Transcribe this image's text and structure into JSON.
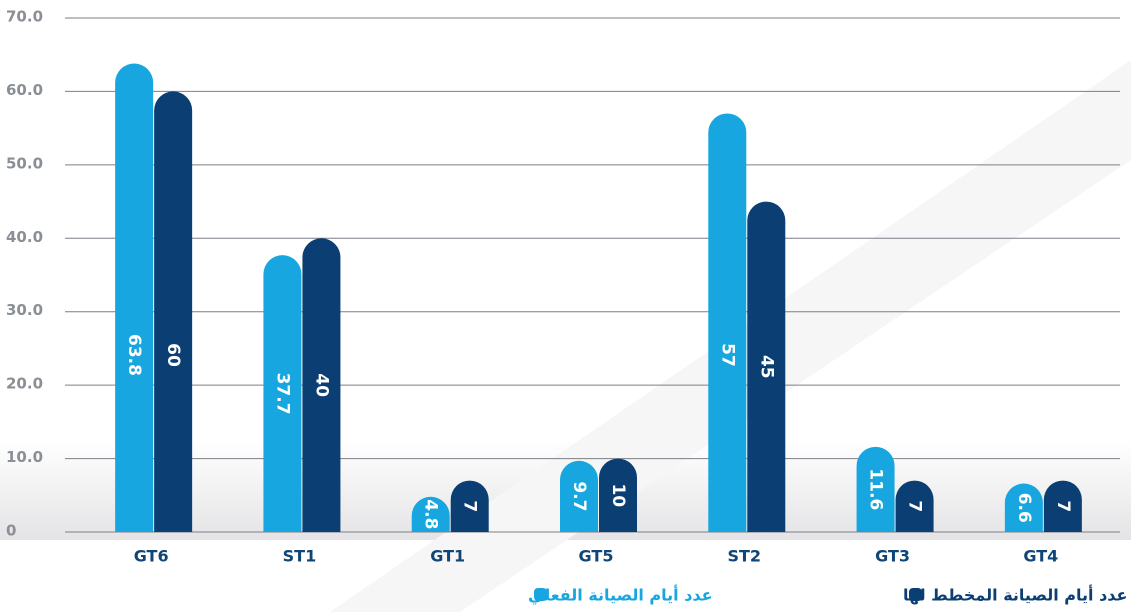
{
  "chart_data": {
    "type": "bar",
    "categories": [
      "GT6",
      "ST1",
      "GT1",
      "GT5",
      "ST2",
      "GT3",
      "GT4"
    ],
    "series": [
      {
        "name": "عدد أيام الصيانة الفعلي",
        "color": "#17a6df",
        "values": [
          63.8,
          37.7,
          4.8,
          9.7,
          57,
          11.6,
          6.6
        ]
      },
      {
        "name": "عدد أيام الصيانة المخطط لها",
        "color": "#0b3f73",
        "values": [
          60,
          40,
          7,
          10,
          45,
          7,
          7
        ]
      }
    ],
    "ylim": [
      0,
      70
    ],
    "yticks": [
      0,
      {
        "value": 10,
        "label": "10.0"
      },
      {
        "value": 20,
        "label": "20.0"
      },
      {
        "value": 30,
        "label": "30.0"
      },
      {
        "value": 40,
        "label": "40.0"
      },
      {
        "value": 50,
        "label": "50.0"
      },
      {
        "value": 60,
        "label": "60.0"
      },
      {
        "value": 70,
        "label": "70.0"
      }
    ],
    "grid": true
  }
}
